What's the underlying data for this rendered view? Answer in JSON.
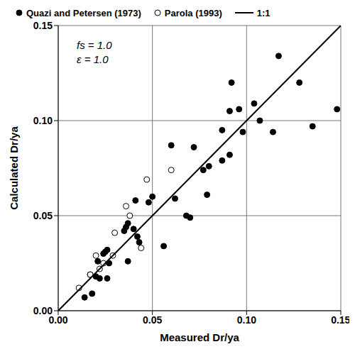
{
  "chart_data": {
    "type": "scatter",
    "x_label": "Measured Dr/ya",
    "y_label": "Calculated Dr/ya",
    "annotations": [
      "fs = 1.0",
      "ε = 1.0"
    ],
    "xlim": [
      0,
      0.15
    ],
    "ylim": [
      0,
      0.15
    ],
    "xticks": [
      {
        "value": 0,
        "label": "0.00"
      },
      {
        "value": 0.05,
        "label": "0.05"
      },
      {
        "value": 0.1,
        "label": "0.10"
      },
      {
        "value": 0.15,
        "label": "0.15"
      }
    ],
    "yticks": [
      {
        "value": 0,
        "label": "0.00"
      },
      {
        "value": 0.05,
        "label": "0.05"
      },
      {
        "value": 0.1,
        "label": "0.10"
      },
      {
        "value": 0.15,
        "label": "0.15"
      }
    ],
    "grid": true,
    "legend": "top",
    "series": [
      {
        "name": "Quazi and Petersen (1973)",
        "type": "scatter",
        "marker": "circle",
        "color": "#000000",
        "x": [
          0.014,
          0.018,
          0.017,
          0.02,
          0.021,
          0.022,
          0.024,
          0.025,
          0.026,
          0.026,
          0.027,
          0.035,
          0.036,
          0.037,
          0.037,
          0.04,
          0.041,
          0.042,
          0.043,
          0.048,
          0.05,
          0.056,
          0.06,
          0.062,
          0.068,
          0.07,
          0.072,
          0.077,
          0.079,
          0.08,
          0.087,
          0.087,
          0.091,
          0.091,
          0.092,
          0.096,
          0.098,
          0.104,
          0.107,
          0.114,
          0.117,
          0.128,
          0.135,
          0.148
        ],
        "values": [
          0.007,
          0.009,
          0.019,
          0.018,
          0.026,
          0.017,
          0.03,
          0.031,
          0.032,
          0.017,
          0.025,
          0.042,
          0.044,
          0.046,
          0.026,
          0.043,
          0.058,
          0.039,
          0.036,
          0.057,
          0.06,
          0.034,
          0.087,
          0.059,
          0.05,
          0.049,
          0.086,
          0.074,
          0.061,
          0.076,
          0.079,
          0.095,
          0.082,
          0.105,
          0.12,
          0.106,
          0.094,
          0.109,
          0.1,
          0.094,
          0.134,
          0.12,
          0.097,
          0.106
        ]
      },
      {
        "name": "Parola (1993)",
        "type": "scatter",
        "marker": "open_circle",
        "color": "#000000",
        "x": [
          0.011,
          0.017,
          0.02,
          0.022,
          0.024,
          0.029,
          0.03,
          0.036,
          0.038,
          0.044,
          0.047,
          0.06
        ],
        "values": [
          0.012,
          0.019,
          0.029,
          0.022,
          0.025,
          0.029,
          0.041,
          0.055,
          0.05,
          0.033,
          0.069,
          0.074
        ]
      },
      {
        "name": "1:1",
        "type": "line",
        "line_style": "solid",
        "color": "#000000",
        "x": [
          0,
          0.15
        ],
        "values": [
          0,
          0.15
        ]
      }
    ]
  }
}
